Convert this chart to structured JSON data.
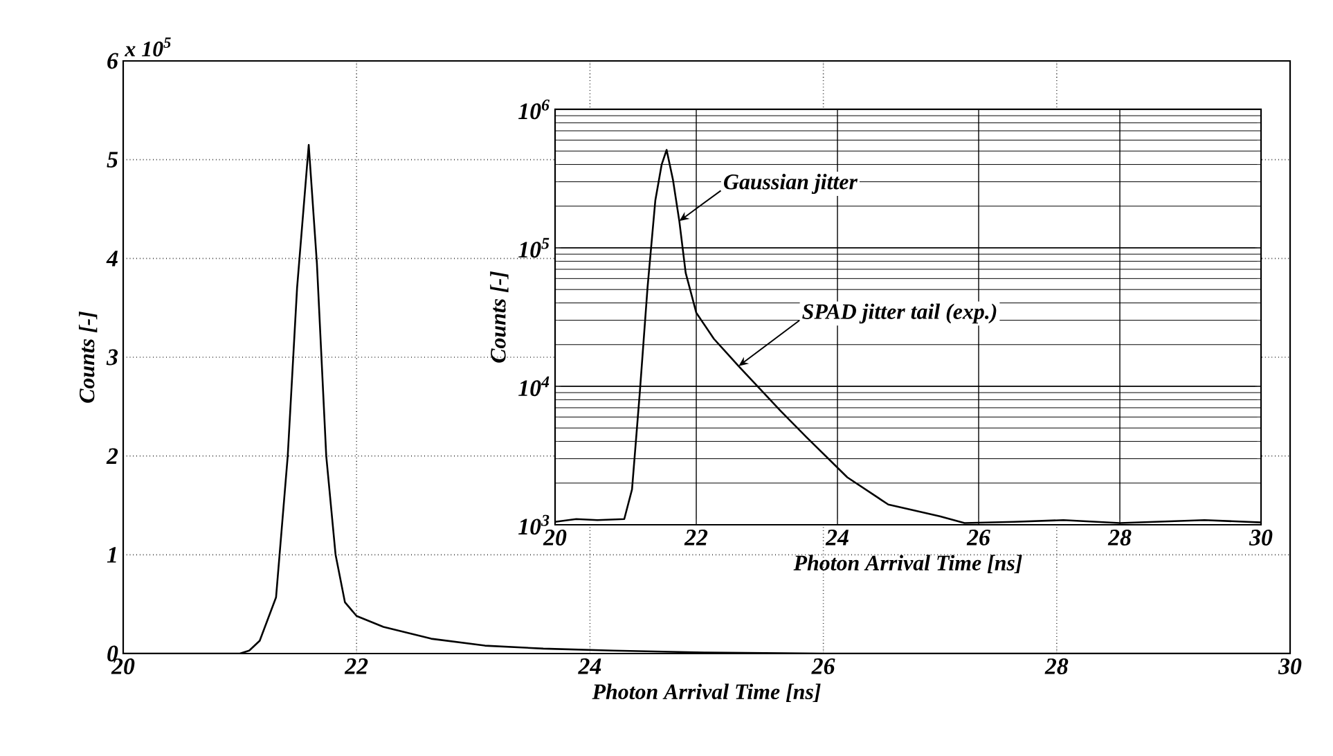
{
  "chart_data": [
    {
      "type": "line",
      "xlabel": "Photon Arrival Time [ns]",
      "ylabel": "Counts [-]",
      "annotations": [
        "x 10$^{5}$"
      ],
      "x": [
        20,
        20.5,
        21.0,
        21.08,
        21.17,
        21.31,
        21.41,
        21.49,
        21.59,
        21.66,
        21.74,
        21.82,
        21.9,
        22.0,
        22.23,
        22.64,
        23.1,
        23.6,
        24.2,
        25,
        26,
        27,
        28,
        29,
        30
      ],
      "values": [
        0,
        0,
        0,
        0.03,
        0.13,
        0.57,
        2.0,
        3.7,
        5.15,
        3.95,
        2.0,
        1.0,
        0.52,
        0.38,
        0.27,
        0.15,
        0.08,
        0.05,
        0.03,
        0.01,
        0,
        0,
        0,
        0,
        0
      ],
      "color": "#000000",
      "xlim": [
        20,
        30
      ],
      "ylim": [
        0,
        6
      ],
      "xticks": [
        20,
        22,
        24,
        26,
        28,
        30
      ],
      "yticks": [
        0,
        1,
        2,
        3,
        4,
        5,
        6
      ],
      "grid": true
    },
    {
      "type": "line",
      "xlabel": "Photon Arrival Time [ns]",
      "ylabel": "Counts [-]",
      "annotations": [
        {
          "text": "Gaussian jitter",
          "x": 21.76,
          "y": 156000
        },
        {
          "text": "SPAD jitter tail (exp.)",
          "x": 22.6,
          "y": 14000
        }
      ],
      "x": [
        20,
        20.3,
        20.6,
        20.98,
        21.09,
        21.2,
        21.31,
        21.42,
        21.51,
        21.58,
        21.67,
        21.76,
        21.85,
        22.0,
        22.25,
        22.6,
        23.2,
        23.56,
        24.14,
        24.72,
        25.0,
        25.45,
        25.8,
        26.5,
        27.2,
        28,
        29.2,
        30
      ],
      "values": [
        1050,
        1100,
        1080,
        1100,
        1800,
        9000,
        52000,
        220000,
        400000,
        510000,
        310000,
        156000,
        66000,
        34000,
        22000,
        14000,
        6600,
        4300,
        2200,
        1400,
        1300,
        1150,
        1030,
        1050,
        1080,
        1030,
        1080,
        1040
      ],
      "color": "#000000",
      "xlim": [
        20,
        30
      ],
      "ylim": [
        1000,
        1000000
      ],
      "xticks": [
        20,
        22,
        24,
        26,
        28,
        30
      ],
      "yticks": [
        {
          "value": 1000,
          "label": "10$^{3}$"
        },
        {
          "value": 10000,
          "label": "10$^{4}$"
        },
        {
          "value": 100000,
          "label": "10$^{5}$"
        },
        {
          "value": 1000000,
          "label": "10$^{6}$"
        }
      ],
      "log": "y",
      "grid": true
    }
  ]
}
